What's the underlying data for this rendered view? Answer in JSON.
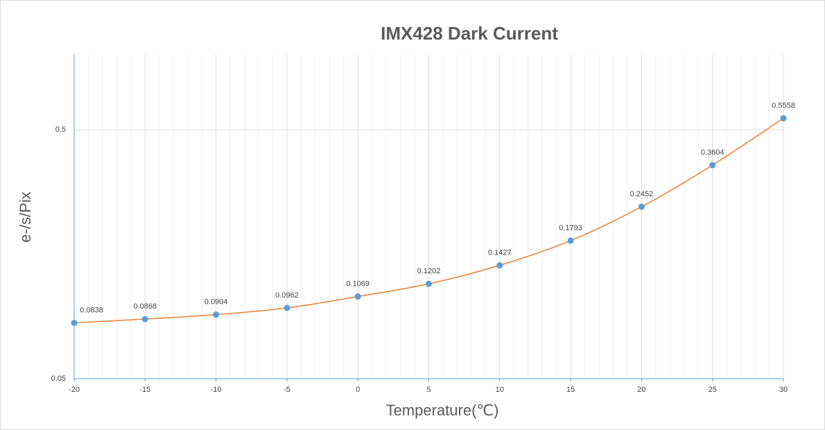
{
  "chart_data": {
    "type": "line",
    "title": "IMX428 Dark Current",
    "x_label": "Temperature(℃)",
    "y_label": "e-/s/Pix",
    "x": [
      -20,
      -15,
      -10,
      -5,
      0,
      5,
      10,
      15,
      20,
      25,
      30
    ],
    "series": [
      {
        "name": "e-/s/Pix",
        "line_color": "#ed7d31",
        "marker_color": "#5b9bd5",
        "values": [
          0.0838,
          0.0868,
          0.0904,
          0.0962,
          0.1069,
          0.1202,
          0.1427,
          0.1793,
          0.2452,
          0.3604,
          0.5558
        ]
      }
    ],
    "xlim": [
      -20,
      30
    ],
    "xticks": [
      -20,
      -15,
      -10,
      -5,
      0,
      5,
      10,
      15,
      20,
      25,
      30
    ],
    "ylim": [
      0.05,
      1
    ],
    "yticks": [
      0.05,
      0.5
    ],
    "y_scale": "log",
    "grid": true
  }
}
